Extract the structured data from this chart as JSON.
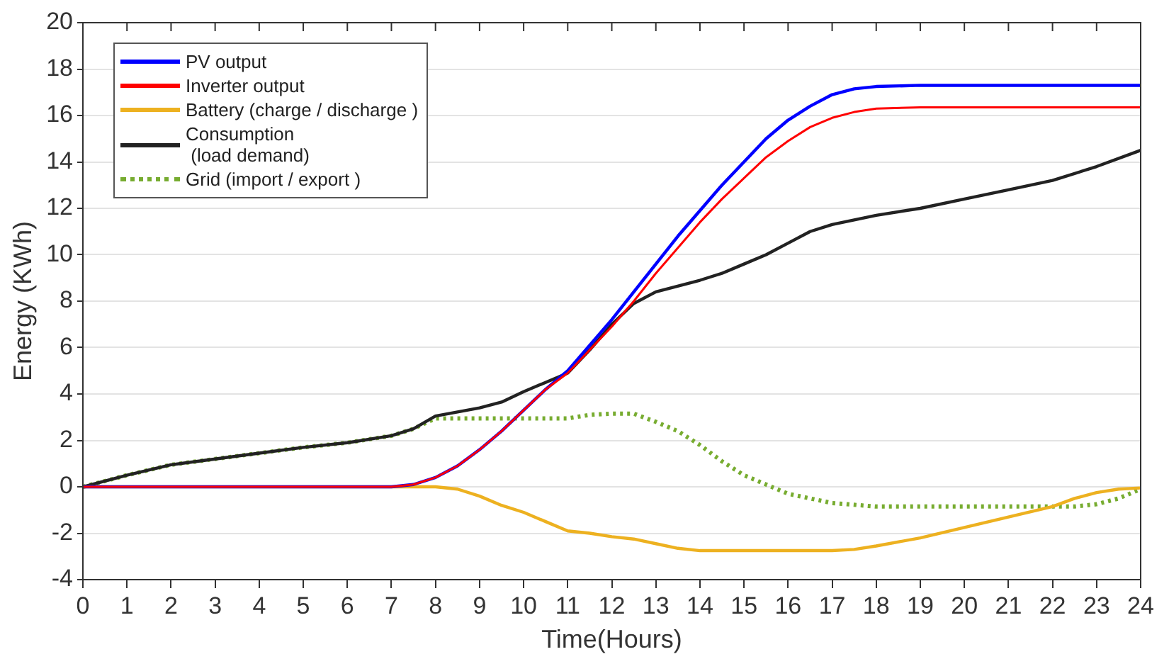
{
  "chart_data": {
    "type": "line",
    "xlabel": "Time(Hours)",
    "ylabel": "Energy (KWh)",
    "xlim": [
      0,
      24
    ],
    "xticks": [
      0,
      1,
      2,
      3,
      4,
      5,
      6,
      7,
      8,
      9,
      10,
      11,
      12,
      13,
      14,
      15,
      16,
      17,
      18,
      19,
      20,
      21,
      22,
      23,
      24
    ],
    "ylim": [
      -4,
      20
    ],
    "yticks": [
      -4,
      -2,
      0,
      2,
      4,
      6,
      8,
      10,
      12,
      14,
      16,
      18,
      20
    ],
    "grid": "y",
    "legend": "top left",
    "marker": "none",
    "series": [
      {
        "name": "PV output",
        "color": "#0000ff",
        "x": [
          0,
          7,
          7.5,
          8,
          8.5,
          9,
          9.5,
          10,
          10.5,
          11,
          11.5,
          12,
          12.5,
          13,
          13.5,
          14,
          14.5,
          15,
          15.5,
          16,
          16.5,
          17,
          17.5,
          18,
          19,
          24
        ],
        "values": [
          0,
          0,
          0.1,
          0.4,
          0.9,
          1.6,
          2.4,
          3.3,
          4.2,
          5.0,
          6.1,
          7.2,
          8.4,
          9.6,
          10.8,
          11.9,
          13.0,
          14.0,
          15.0,
          15.8,
          16.4,
          16.9,
          17.15,
          17.25,
          17.3,
          17.3
        ]
      },
      {
        "name": "Inverter output",
        "color": "#ff0000",
        "x": [
          0,
          7,
          7.5,
          8,
          8.5,
          9,
          9.5,
          10,
          10.5,
          11,
          11.5,
          12,
          12.5,
          13,
          13.5,
          14,
          14.5,
          15,
          15.5,
          16,
          16.5,
          17,
          17.5,
          18,
          19,
          24
        ],
        "values": [
          0,
          0,
          0.1,
          0.4,
          0.9,
          1.6,
          2.4,
          3.3,
          4.2,
          4.9,
          5.9,
          6.9,
          8.0,
          9.2,
          10.3,
          11.4,
          12.4,
          13.3,
          14.2,
          14.9,
          15.5,
          15.9,
          16.15,
          16.3,
          16.35,
          16.35
        ]
      },
      {
        "name": "Battery (charge / discharge )",
        "color": "#edb120",
        "x": [
          0,
          8,
          8.5,
          9,
          9.5,
          10,
          10.5,
          11,
          11.5,
          12,
          12.5,
          13,
          13.5,
          14,
          15,
          16,
          17,
          17.5,
          18,
          19,
          20,
          21,
          22,
          22.5,
          23,
          23.5,
          24
        ],
        "values": [
          0,
          0,
          -0.1,
          -0.4,
          -0.8,
          -1.1,
          -1.5,
          -1.9,
          -2.0,
          -2.15,
          -2.25,
          -2.45,
          -2.65,
          -2.75,
          -2.75,
          -2.75,
          -2.75,
          -2.7,
          -2.55,
          -2.2,
          -1.75,
          -1.3,
          -0.85,
          -0.5,
          -0.25,
          -0.1,
          -0.05
        ]
      },
      {
        "name": "Consumption\n (load demand)",
        "color": "#222222",
        "x": [
          0,
          1,
          2,
          3,
          4,
          5,
          6,
          7,
          7.5,
          8,
          9,
          9.5,
          10,
          11,
          11.5,
          12,
          12.5,
          13,
          14,
          14.5,
          15,
          15.5,
          16,
          16.5,
          17,
          18,
          19,
          20,
          21,
          22,
          23,
          24
        ],
        "values": [
          0,
          0.5,
          0.95,
          1.2,
          1.45,
          1.7,
          1.9,
          2.2,
          2.5,
          3.05,
          3.4,
          3.65,
          4.1,
          4.9,
          5.9,
          7.0,
          7.9,
          8.4,
          8.9,
          9.2,
          9.6,
          10.0,
          10.5,
          11.0,
          11.3,
          11.7,
          12.0,
          12.4,
          12.8,
          13.2,
          13.8,
          14.5
        ]
      },
      {
        "name": "Grid (import / export )",
        "color": "#77ac30",
        "line_style": "dotted",
        "x": [
          0,
          1,
          2,
          3,
          4,
          5,
          6,
          7,
          7.5,
          8,
          9,
          10,
          11,
          11.5,
          12,
          12.5,
          13,
          13.5,
          14,
          14.5,
          15,
          15.5,
          16,
          16.5,
          17,
          18,
          19,
          20,
          21,
          22,
          22.5,
          23,
          23.5,
          24
        ],
        "values": [
          0,
          0.5,
          0.95,
          1.2,
          1.45,
          1.7,
          1.9,
          2.2,
          2.5,
          2.95,
          2.95,
          2.95,
          2.95,
          3.1,
          3.15,
          3.15,
          2.8,
          2.4,
          1.8,
          1.1,
          0.5,
          0.1,
          -0.3,
          -0.5,
          -0.7,
          -0.85,
          -0.85,
          -0.85,
          -0.85,
          -0.85,
          -0.85,
          -0.75,
          -0.5,
          -0.1
        ]
      }
    ]
  }
}
